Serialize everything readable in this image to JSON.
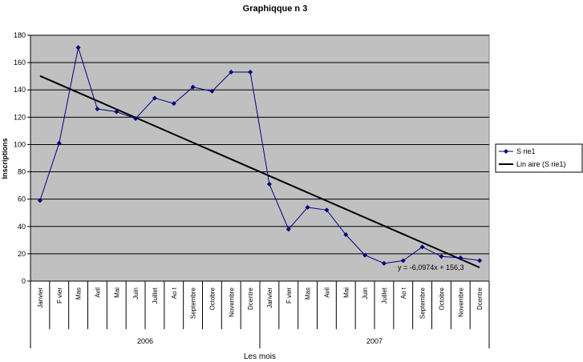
{
  "chart_data": {
    "type": "line",
    "title": "Graphiqque n 3",
    "xlabel": "Les mois",
    "ylabel": "Inscriptions",
    "ylim": [
      0,
      180
    ],
    "yticks": [
      0,
      20,
      40,
      60,
      80,
      100,
      120,
      140,
      160,
      180
    ],
    "grid": true,
    "legend_position": "right",
    "categories": [
      "Janvier",
      "F vier",
      "Mas",
      "Avil",
      "Mai",
      "Juin",
      "Juillet",
      "Ao t",
      "Septembre",
      "Octobre",
      "Novembre",
      "Dcentre",
      "Janvier",
      "F vier",
      "Mas",
      "Avil",
      "Mai",
      "Juin",
      "Juillet",
      "Ao t",
      "Septembre",
      "Octobre",
      "Novembre",
      "Dcentre"
    ],
    "groups": [
      {
        "label": "2006",
        "span": 12
      },
      {
        "label": "2007",
        "span": 12
      }
    ],
    "series": [
      {
        "name": "S rie1",
        "color": "#000080",
        "values": [
          59,
          101,
          171,
          126,
          124,
          119,
          134,
          130,
          142,
          139,
          153,
          153,
          71,
          38,
          54,
          52,
          34,
          19,
          13,
          15,
          25,
          18,
          17,
          15
        ]
      }
    ],
    "trendline": {
      "name": "Lin aire (S rie1)",
      "color": "#000000",
      "slope": -6.0974,
      "intercept": 156.3,
      "equation": "y = -6,0974x + 156,3"
    },
    "colors": {
      "plot_background": "#c0c0c0",
      "gridline": "#000000"
    }
  }
}
